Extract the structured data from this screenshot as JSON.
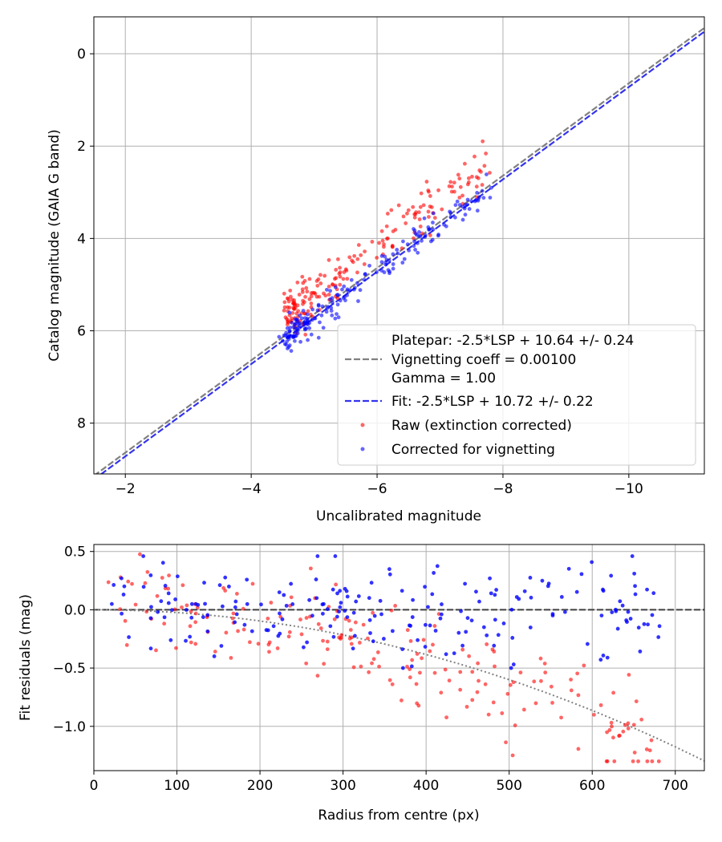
{
  "chart_data": [
    {
      "type": "scatter",
      "xlabel": "Uncalibrated magnitude",
      "ylabel": "Catalog magnitude (GAIA G band)",
      "xlim": [
        -1.5,
        -11.2
      ],
      "ylim": [
        9.1,
        -0.8
      ],
      "x_ticks": [
        -2,
        -4,
        -6,
        -8,
        -10
      ],
      "x_tick_labels": [
        "−2",
        "−4",
        "−6",
        "−8",
        "−10"
      ],
      "y_ticks": [
        0,
        2,
        4,
        6,
        8
      ],
      "y_tick_labels": [
        "0",
        "2",
        "4",
        "6",
        "8"
      ],
      "grid": true,
      "lines": [
        {
          "name": "platepar",
          "intercept": 10.64,
          "slope": -2.5,
          "color": "#808080",
          "style": "dashed"
        },
        {
          "name": "fit",
          "intercept": 10.72,
          "slope": -2.5,
          "color": "#3333ee",
          "style": "dashed"
        }
      ],
      "series": [
        {
          "name": "raw",
          "color": "#ff0000",
          "x_range": [
            -4.5,
            -7.6
          ],
          "offset_mean": 10.15,
          "offset_sd": 0.32,
          "count": 200
        },
        {
          "name": "corrected",
          "color": "#0000ff",
          "x_range": [
            -4.5,
            -8.0
          ],
          "offset_mean": 10.65,
          "offset_sd": 0.17,
          "count": 200
        }
      ],
      "legend": {
        "position": "lower-right",
        "platepar_line1": "Platepar: -2.5*LSP + 10.64 +/- 0.24",
        "platepar_line2": "Vignetting coeff = 0.00100",
        "platepar_line3": "Gamma = 1.00",
        "fit": "Fit: -2.5*LSP + 10.72 +/- 0.22",
        "raw": "Raw (extinction corrected)",
        "corrected": "Corrected for vignetting"
      }
    },
    {
      "type": "scatter",
      "xlabel": "Radius from centre (px)",
      "ylabel": "Fit residuals (mag)",
      "xlim": [
        0,
        735
      ],
      "ylim": [
        -1.38,
        0.56
      ],
      "x_ticks": [
        0,
        100,
        200,
        300,
        400,
        500,
        600,
        700
      ],
      "x_tick_labels": [
        "0",
        "100",
        "200",
        "300",
        "400",
        "500",
        "600",
        "700"
      ],
      "y_ticks": [
        0.5,
        0.0,
        -0.5,
        -1.0
      ],
      "y_tick_labels": [
        "0.5",
        "0.0",
        "−0.5",
        "−1.0"
      ],
      "grid": true,
      "zero_line": {
        "y": 0,
        "color": "#404040",
        "style": "dashed"
      },
      "vignetting_curve": {
        "coeff": 0.001,
        "color": "#808080",
        "style": "dotted"
      },
      "series": [
        {
          "name": "raw",
          "color": "#ff0000",
          "r_range": [
            15,
            690
          ],
          "count": 200
        },
        {
          "name": "corrected",
          "color": "#0000ff",
          "r_range": [
            15,
            690
          ],
          "count": 200
        }
      ]
    }
  ]
}
